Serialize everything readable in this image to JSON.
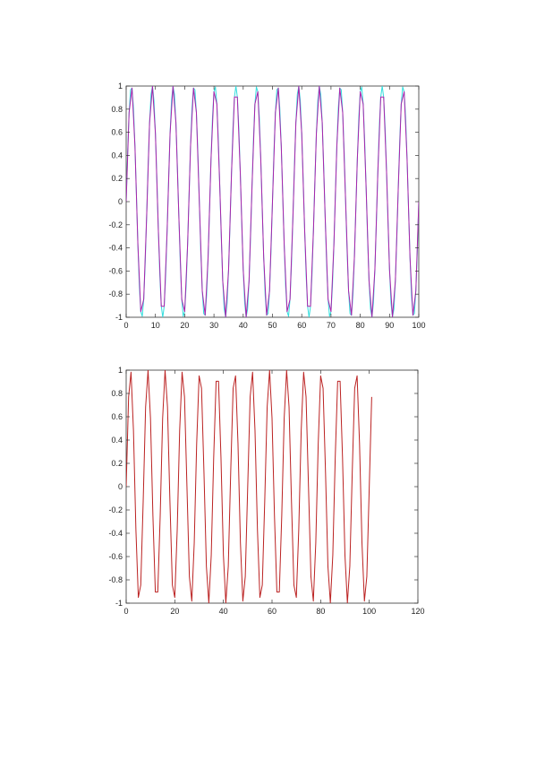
{
  "chart_data": [
    {
      "type": "line",
      "xlim": [
        0,
        100
      ],
      "ylim": [
        -1,
        1
      ],
      "xticks": [
        "0",
        "10",
        "20",
        "30",
        "40",
        "50",
        "60",
        "70",
        "80",
        "90",
        "100"
      ],
      "yticks": [
        "1",
        "0.8",
        "0.6",
        "0.4",
        "0.2",
        "0",
        "-0.2",
        "-0.4",
        "-0.6",
        "-0.8",
        "-1"
      ],
      "grid": false,
      "legend": "none",
      "series": [
        {
          "color": "#33dddd",
          "description": "sinusoid, 14 cycles over x 0-100, sampled at 0.5 step",
          "x_start": 0,
          "x_end": 100,
          "step": 0.5,
          "amplitude": 1,
          "cycles": 14
        },
        {
          "color": "#aa22aa",
          "description": "sinusoid, 14 cycles over x 0-100, sampled at 1 step",
          "x_start": 0,
          "x_end": 100,
          "step": 1,
          "amplitude": 1,
          "cycles": 14
        }
      ]
    },
    {
      "type": "line",
      "xlim": [
        0,
        120
      ],
      "ylim": [
        -1,
        1
      ],
      "xticks": [
        "0",
        "20",
        "40",
        "60",
        "80",
        "100",
        "120"
      ],
      "yticks": [
        "1",
        "0.8",
        "0.6",
        "0.4",
        "0.2",
        "0",
        "-0.2",
        "-0.4",
        "-0.6",
        "-0.8",
        "-1"
      ],
      "grid": false,
      "legend": "none",
      "series": [
        {
          "color": "#bb2222",
          "description": "sinusoid, 14 cycles over x 0-101, sampled at 1 step",
          "x_start": 0,
          "x_end": 101,
          "step": 1,
          "amplitude": 1,
          "cycles": 14
        }
      ]
    }
  ]
}
